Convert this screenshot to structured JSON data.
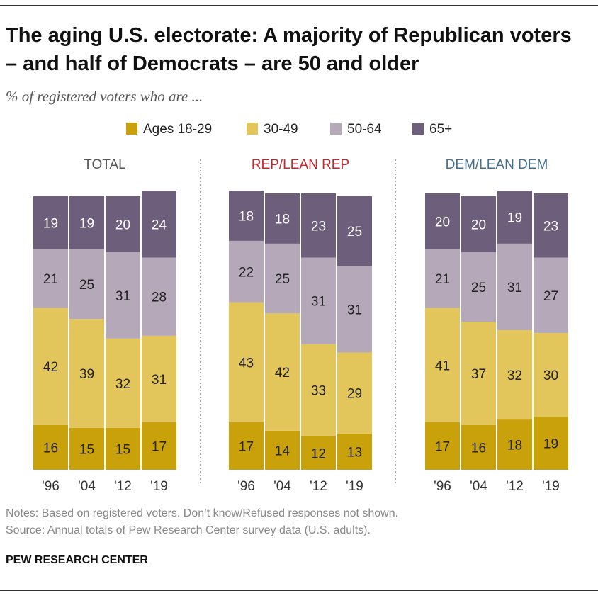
{
  "title": "The aging U.S. electorate: A majority of Republican voters – and half of Democrats – are 50 and older",
  "subtitle": "% of registered voters who are ...",
  "notes": "Notes: Based on registered voters. Don’t know/Refused responses not shown.",
  "source": "Source: Annual totals of Pew Research Center survey data (U.S. adults).",
  "credit": "PEW RESEARCH CENTER",
  "chart_data": {
    "type": "stacked_bar",
    "ylim": [
      0,
      100
    ],
    "series": [
      {
        "name": "Ages 18-29",
        "color": "#c9a10a",
        "label_color": "#222222"
      },
      {
        "name": "30-49",
        "color": "#e2c65b",
        "label_color": "#222222"
      },
      {
        "name": "50-64",
        "color": "#b4a8b9",
        "label_color": "#222222"
      },
      {
        "name": "65+",
        "color": "#6d5e7c",
        "label_color": "#ffffff"
      }
    ],
    "panels": [
      {
        "title": "TOTAL",
        "color": "#555555",
        "categories": [
          "'96",
          "'04",
          "'12",
          "'19"
        ],
        "series": [
          [
            16,
            15,
            15,
            17
          ],
          [
            42,
            39,
            32,
            31
          ],
          [
            21,
            25,
            31,
            28
          ],
          [
            19,
            19,
            20,
            24
          ]
        ]
      },
      {
        "title": "REP/LEAN REP",
        "color": "#c0282d",
        "categories": [
          "'96",
          "'04",
          "'12",
          "'19"
        ],
        "series": [
          [
            17,
            14,
            12,
            13
          ],
          [
            43,
            42,
            33,
            29
          ],
          [
            22,
            25,
            31,
            31
          ],
          [
            18,
            18,
            23,
            25
          ]
        ]
      },
      {
        "title": "DEM/LEAN DEM",
        "color": "#436f8e",
        "categories": [
          "'96",
          "'04",
          "'12",
          "'19"
        ],
        "series": [
          [
            17,
            16,
            18,
            19
          ],
          [
            41,
            37,
            32,
            30
          ],
          [
            21,
            25,
            31,
            27
          ],
          [
            20,
            20,
            19,
            23
          ]
        ]
      }
    ]
  }
}
